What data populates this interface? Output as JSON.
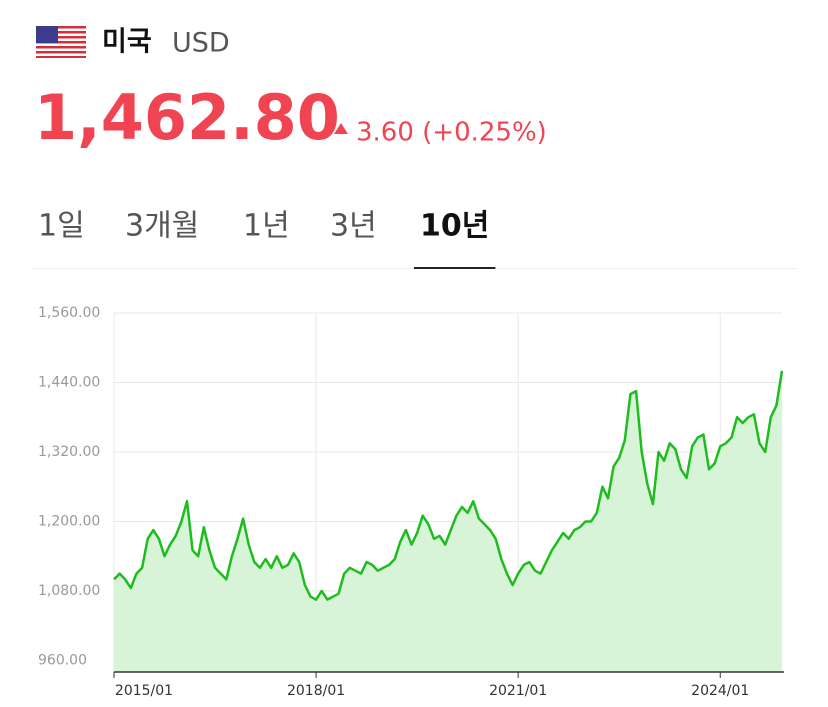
{
  "header": {
    "country": "미국",
    "currency": "USD",
    "price": "1,462.80",
    "change": "3.60 (+0.25%)"
  },
  "tabs": {
    "items": [
      "1일",
      "3개월",
      "1년",
      "3년",
      "10년"
    ],
    "selected": 4
  },
  "chart_data": {
    "type": "line",
    "area": true,
    "color": "#1ebd1e",
    "fill": "#d8f4d8",
    "grid": true,
    "xlim": [
      "2015/01",
      "2024/12"
    ],
    "xticks": [
      "2015/01",
      "2018/01",
      "2021/01",
      "2024/01"
    ],
    "ylim": [
      940,
      1560
    ],
    "yticks": [
      {
        "value": 960,
        "label": "960.00"
      },
      {
        "value": 1080,
        "label": "1,080.00"
      },
      {
        "value": 1200,
        "label": "1,200.00"
      },
      {
        "value": 1320,
        "label": "1,320.00"
      },
      {
        "value": 1440,
        "label": "1,440.00"
      },
      {
        "value": 1560,
        "label": "1,560.00"
      }
    ],
    "x": [
      "2015/01",
      "2015/02",
      "2015/03",
      "2015/04",
      "2015/05",
      "2015/06",
      "2015/07",
      "2015/08",
      "2015/09",
      "2015/10",
      "2015/11",
      "2015/12",
      "2016/01",
      "2016/02",
      "2016/03",
      "2016/04",
      "2016/05",
      "2016/06",
      "2016/07",
      "2016/08",
      "2016/09",
      "2016/10",
      "2016/11",
      "2016/12",
      "2017/01",
      "2017/02",
      "2017/03",
      "2017/04",
      "2017/05",
      "2017/06",
      "2017/07",
      "2017/08",
      "2017/09",
      "2017/10",
      "2017/11",
      "2017/12",
      "2018/01",
      "2018/02",
      "2018/03",
      "2018/04",
      "2018/05",
      "2018/06",
      "2018/07",
      "2018/08",
      "2018/09",
      "2018/10",
      "2018/11",
      "2018/12",
      "2019/01",
      "2019/02",
      "2019/03",
      "2019/04",
      "2019/05",
      "2019/06",
      "2019/07",
      "2019/08",
      "2019/09",
      "2019/10",
      "2019/11",
      "2019/12",
      "2020/01",
      "2020/02",
      "2020/03",
      "2020/04",
      "2020/05",
      "2020/06",
      "2020/07",
      "2020/08",
      "2020/09",
      "2020/10",
      "2020/11",
      "2020/12",
      "2021/01",
      "2021/02",
      "2021/03",
      "2021/04",
      "2021/05",
      "2021/06",
      "2021/07",
      "2021/08",
      "2021/09",
      "2021/10",
      "2021/11",
      "2021/12",
      "2022/01",
      "2022/02",
      "2022/03",
      "2022/04",
      "2022/05",
      "2022/06",
      "2022/07",
      "2022/08",
      "2022/09",
      "2022/10",
      "2022/11",
      "2022/12",
      "2023/01",
      "2023/02",
      "2023/03",
      "2023/04",
      "2023/05",
      "2023/06",
      "2023/07",
      "2023/08",
      "2023/09",
      "2023/10",
      "2023/11",
      "2023/12",
      "2024/01",
      "2024/02",
      "2024/03",
      "2024/04",
      "2024/05",
      "2024/06",
      "2024/07",
      "2024/08",
      "2024/09",
      "2024/10",
      "2024/11",
      "2024/12"
    ],
    "series": [
      {
        "values": [
          1100,
          1110,
          1100,
          1085,
          1110,
          1120,
          1170,
          1185,
          1170,
          1140,
          1160,
          1175,
          1200,
          1235,
          1150,
          1140,
          1190,
          1150,
          1120,
          1110,
          1100,
          1140,
          1170,
          1205,
          1160,
          1130,
          1120,
          1135,
          1120,
          1140,
          1120,
          1125,
          1145,
          1130,
          1090,
          1070,
          1065,
          1080,
          1065,
          1070,
          1075,
          1110,
          1120,
          1115,
          1110,
          1130,
          1125,
          1115,
          1120,
          1125,
          1135,
          1165,
          1185,
          1160,
          1180,
          1210,
          1195,
          1170,
          1175,
          1160,
          1185,
          1210,
          1225,
          1215,
          1235,
          1205,
          1195,
          1185,
          1170,
          1135,
          1110,
          1090,
          1110,
          1125,
          1130,
          1115,
          1110,
          1130,
          1150,
          1165,
          1180,
          1170,
          1185,
          1190,
          1200,
          1200,
          1215,
          1260,
          1240,
          1295,
          1310,
          1340,
          1420,
          1425,
          1320,
          1265,
          1230,
          1320,
          1305,
          1335,
          1325,
          1290,
          1275,
          1330,
          1345,
          1350,
          1290,
          1300,
          1330,
          1335,
          1345,
          1380,
          1370,
          1380,
          1385,
          1335,
          1320,
          1380,
          1400,
          1460
        ]
      }
    ]
  }
}
